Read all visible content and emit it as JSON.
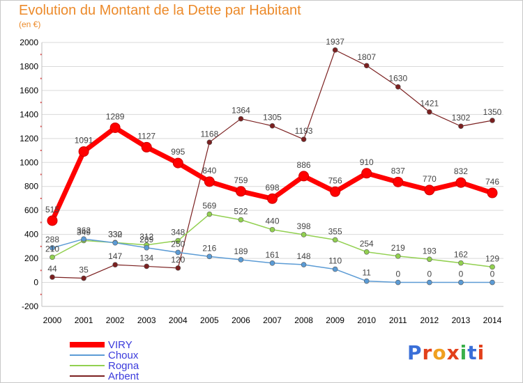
{
  "title": "Evolution du Montant de la Dette par Habitant",
  "unit": "(en €)",
  "logo": {
    "text": "Proxiti",
    "letters": [
      "P",
      "r",
      "o",
      "x",
      "i",
      "t",
      "i"
    ],
    "colors": [
      "#3a6fd8",
      "#e2401b",
      "#f0a020",
      "#e2401b",
      "#3ab04a",
      "#3a6fd8",
      "#e2401b"
    ]
  },
  "chart_data": {
    "type": "line",
    "x": [
      2000,
      2001,
      2002,
      2003,
      2004,
      2005,
      2006,
      2007,
      2008,
      2009,
      2010,
      2011,
      2012,
      2013,
      2014
    ],
    "ylim": [
      -200,
      2000
    ],
    "yticks": [
      -200,
      0,
      200,
      400,
      600,
      800,
      1000,
      1200,
      1400,
      1600,
      1800,
      2000
    ],
    "grid": "horizontal",
    "legend_position": "bottom-left",
    "series": [
      {
        "name": "VIRY",
        "color": "#ff0000",
        "width": 7,
        "marker": 7,
        "values": [
          515,
          1091,
          1289,
          1127,
          995,
          840,
          759,
          698,
          886,
          756,
          910,
          837,
          770,
          832,
          746
        ],
        "labels": [
          "515",
          "1091",
          "1289",
          "1127",
          "995",
          "840",
          "759",
          "698",
          "886",
          "756",
          "910",
          "837",
          "770",
          "832",
          "746"
        ]
      },
      {
        "name": "Choux",
        "color": "#5b9bd5",
        "width": 1.5,
        "marker": 3.5,
        "values": [
          288,
          362,
          330,
          289,
          250,
          216,
          189,
          161,
          148,
          110,
          11,
          0,
          0,
          0,
          0
        ],
        "labels": [
          "288",
          "362",
          "330",
          "289",
          "250",
          "216",
          "189",
          "161",
          "148",
          "110",
          "11",
          "0",
          "0",
          "0",
          "0"
        ]
      },
      {
        "name": "Rogna",
        "color": "#92d050",
        "width": 1.5,
        "marker": 3.5,
        "values": [
          210,
          349,
          332,
          312,
          348,
          569,
          522,
          440,
          398,
          355,
          254,
          219,
          193,
          162,
          129
        ],
        "labels": [
          "210",
          "349",
          "332",
          "312",
          "348",
          "569",
          "522",
          "440",
          "398",
          "355",
          "254",
          "219",
          "193",
          "162",
          "129"
        ]
      },
      {
        "name": "Arbent",
        "color": "#7b2020",
        "width": 1.2,
        "marker": 3.5,
        "values": [
          44,
          35,
          147,
          134,
          120,
          1168,
          1364,
          1305,
          1193,
          1937,
          1807,
          1630,
          1421,
          1302,
          1350
        ],
        "labels": [
          "44",
          "35",
          "147",
          "134",
          "120",
          "1168",
          "1364",
          "1305",
          "1193",
          "1937",
          "1807",
          "1630",
          "1421",
          "1302",
          "1350"
        ]
      }
    ]
  }
}
